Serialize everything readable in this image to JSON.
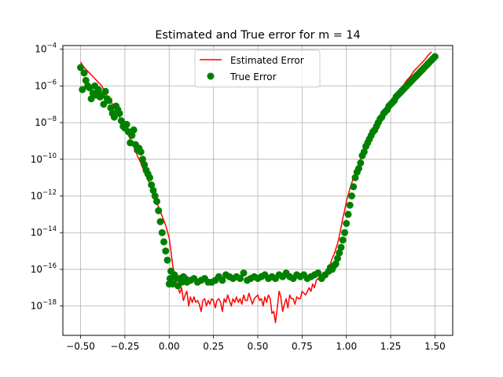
{
  "chart_data": {
    "type": "line",
    "title": "Estimated and True error for m = 14",
    "xlabel": "",
    "ylabel": "",
    "xlim": [
      -0.6,
      1.6
    ],
    "ylim_log10": [
      -19.6,
      -3.8
    ],
    "yscale": "log",
    "grid": true,
    "legend_position": "upper-center",
    "x_ticks": [
      {
        "value": -0.5,
        "label": "−0.50"
      },
      {
        "value": -0.25,
        "label": "−0.25"
      },
      {
        "value": 0.0,
        "label": "0.00"
      },
      {
        "value": 0.25,
        "label": "0.25"
      },
      {
        "value": 0.5,
        "label": "0.50"
      },
      {
        "value": 0.75,
        "label": "0.75"
      },
      {
        "value": 1.0,
        "label": "1.00"
      },
      {
        "value": 1.25,
        "label": "1.25"
      },
      {
        "value": 1.5,
        "label": "1.50"
      }
    ],
    "y_ticks": [
      {
        "exp": -4,
        "base": "10",
        "sup": "−4"
      },
      {
        "exp": -6,
        "base": "10",
        "sup": "−6"
      },
      {
        "exp": -8,
        "base": "10",
        "sup": "−8"
      },
      {
        "exp": -10,
        "base": "10",
        "sup": "−10"
      },
      {
        "exp": -12,
        "base": "10",
        "sup": "−12"
      },
      {
        "exp": -14,
        "base": "10",
        "sup": "−14"
      },
      {
        "exp": -16,
        "base": "10",
        "sup": "−16"
      },
      {
        "exp": -18,
        "base": "10",
        "sup": "−18"
      }
    ],
    "series": [
      {
        "name": "Estimated Error",
        "style": "line",
        "color": "#ff0000",
        "x": [
          -0.5,
          -0.48,
          -0.46,
          -0.44,
          -0.42,
          -0.4,
          -0.38,
          -0.36,
          -0.34,
          -0.32,
          -0.3,
          -0.28,
          -0.26,
          -0.24,
          -0.22,
          -0.2,
          -0.18,
          -0.16,
          -0.14,
          -0.12,
          -0.1,
          -0.08,
          -0.06,
          -0.04,
          -0.02,
          0.0,
          0.01,
          0.02,
          0.03,
          0.04,
          0.05,
          0.06,
          0.07,
          0.08,
          0.09,
          0.1,
          0.11,
          0.12,
          0.13,
          0.14,
          0.15,
          0.16,
          0.17,
          0.18,
          0.19,
          0.2,
          0.21,
          0.22,
          0.23,
          0.24,
          0.25,
          0.26,
          0.27,
          0.28,
          0.29,
          0.3,
          0.31,
          0.32,
          0.33,
          0.34,
          0.35,
          0.36,
          0.37,
          0.38,
          0.39,
          0.4,
          0.41,
          0.42,
          0.43,
          0.44,
          0.45,
          0.46,
          0.47,
          0.48,
          0.49,
          0.5,
          0.51,
          0.52,
          0.53,
          0.54,
          0.55,
          0.56,
          0.57,
          0.58,
          0.59,
          0.6,
          0.61,
          0.62,
          0.63,
          0.64,
          0.65,
          0.66,
          0.67,
          0.68,
          0.69,
          0.7,
          0.71,
          0.72,
          0.73,
          0.74,
          0.75,
          0.76,
          0.77,
          0.78,
          0.79,
          0.8,
          0.81,
          0.82,
          0.83,
          0.84,
          0.85,
          0.86,
          0.87,
          0.88,
          0.89,
          0.9,
          0.91,
          0.92,
          0.93,
          0.94,
          0.95,
          0.96,
          0.97,
          0.98,
          0.99,
          1.0,
          1.02,
          1.04,
          1.06,
          1.08,
          1.1,
          1.12,
          1.14,
          1.16,
          1.18,
          1.2,
          1.22,
          1.24,
          1.26,
          1.28,
          1.3,
          1.32,
          1.34,
          1.36,
          1.38,
          1.4,
          1.42,
          1.44,
          1.46,
          1.48,
          1.5
        ],
        "log10_y": [
          -4.7,
          -5.0,
          -5.2,
          -5.4,
          -5.6,
          -5.8,
          -6.0,
          -6.4,
          -6.7,
          -7.0,
          -7.3,
          -7.7,
          -8.1,
          -8.5,
          -8.9,
          -9.3,
          -9.8,
          -10.2,
          -10.7,
          -11.1,
          -11.6,
          -12.1,
          -12.6,
          -13.1,
          -13.6,
          -14.3,
          -15.0,
          -15.8,
          -16.3,
          -16.8,
          -17.0,
          -17.3,
          -17.0,
          -17.7,
          -17.4,
          -17.2,
          -18.0,
          -17.5,
          -17.8,
          -17.5,
          -17.8,
          -17.7,
          -17.9,
          -18.3,
          -17.7,
          -17.6,
          -18.0,
          -17.7,
          -17.9,
          -17.6,
          -17.7,
          -18.1,
          -17.7,
          -17.6,
          -17.8,
          -18.3,
          -17.6,
          -17.8,
          -17.4,
          -17.7,
          -18.0,
          -17.6,
          -17.8,
          -17.5,
          -17.8,
          -17.6,
          -17.9,
          -17.4,
          -17.7,
          -17.7,
          -17.3,
          -17.6,
          -17.9,
          -17.6,
          -17.5,
          -17.4,
          -17.7,
          -17.6,
          -18.0,
          -17.5,
          -17.8,
          -17.4,
          -17.6,
          -18.4,
          -18.3,
          -18.9,
          -18.1,
          -17.2,
          -17.5,
          -18.3,
          -17.9,
          -17.6,
          -18.1,
          -17.4,
          -17.6,
          -17.6,
          -17.9,
          -17.5,
          -17.6,
          -17.6,
          -17.2,
          -17.3,
          -17.4,
          -17.2,
          -17.0,
          -17.2,
          -16.8,
          -17.0,
          -16.6,
          -16.5,
          -16.6,
          -16.3,
          -16.4,
          -16.2,
          -16.1,
          -15.9,
          -15.7,
          -15.4,
          -15.2,
          -14.9,
          -14.6,
          -14.2,
          -13.7,
          -13.2,
          -12.8,
          -12.3,
          -11.6,
          -11.0,
          -10.5,
          -10.0,
          -9.5,
          -9.1,
          -8.7,
          -8.3,
          -8.0,
          -7.7,
          -7.4,
          -7.1,
          -6.8,
          -6.5,
          -6.2,
          -6.0,
          -5.7,
          -5.5,
          -5.2,
          -5.0,
          -4.8,
          -4.6,
          -4.35,
          -4.15
        ]
      },
      {
        "name": "True Error",
        "style": "markers",
        "color": "#008000",
        "x": [
          -0.5,
          -0.49,
          -0.48,
          -0.47,
          -0.46,
          -0.45,
          -0.44,
          -0.43,
          -0.42,
          -0.41,
          -0.4,
          -0.39,
          -0.38,
          -0.37,
          -0.36,
          -0.35,
          -0.34,
          -0.33,
          -0.32,
          -0.31,
          -0.3,
          -0.29,
          -0.28,
          -0.27,
          -0.26,
          -0.25,
          -0.24,
          -0.23,
          -0.22,
          -0.21,
          -0.2,
          -0.19,
          -0.18,
          -0.17,
          -0.16,
          -0.15,
          -0.14,
          -0.13,
          -0.12,
          -0.11,
          -0.1,
          -0.09,
          -0.08,
          -0.07,
          -0.06,
          -0.05,
          -0.04,
          -0.03,
          -0.02,
          -0.01,
          0.0,
          0.005,
          0.01,
          0.02,
          0.03,
          0.04,
          0.05,
          0.06,
          0.07,
          0.08,
          0.09,
          0.1,
          0.12,
          0.14,
          0.16,
          0.18,
          0.2,
          0.22,
          0.24,
          0.26,
          0.28,
          0.3,
          0.32,
          0.34,
          0.36,
          0.38,
          0.4,
          0.42,
          0.44,
          0.46,
          0.48,
          0.5,
          0.52,
          0.54,
          0.56,
          0.58,
          0.6,
          0.62,
          0.64,
          0.66,
          0.68,
          0.7,
          0.72,
          0.74,
          0.76,
          0.78,
          0.8,
          0.82,
          0.84,
          0.86,
          0.88,
          0.9,
          0.91,
          0.92,
          0.93,
          0.94,
          0.95,
          0.96,
          0.97,
          0.98,
          0.99,
          1.0,
          1.01,
          1.02,
          1.03,
          1.04,
          1.05,
          1.06,
          1.07,
          1.08,
          1.09,
          1.1,
          1.11,
          1.12,
          1.13,
          1.14,
          1.15,
          1.16,
          1.17,
          1.18,
          1.19,
          1.2,
          1.21,
          1.22,
          1.23,
          1.24,
          1.25,
          1.26,
          1.27,
          1.28,
          1.29,
          1.3,
          1.31,
          1.32,
          1.33,
          1.34,
          1.35,
          1.36,
          1.37,
          1.38,
          1.39,
          1.4,
          1.41,
          1.42,
          1.43,
          1.44,
          1.45,
          1.46,
          1.47,
          1.48,
          1.49,
          1.5
        ],
        "log10_y": [
          -5.0,
          -6.2,
          -5.3,
          -5.7,
          -6.0,
          -6.1,
          -6.7,
          -6.4,
          -6.0,
          -6.5,
          -6.2,
          -6.6,
          -6.5,
          -7.0,
          -6.3,
          -6.7,
          -6.8,
          -7.2,
          -7.5,
          -7.7,
          -7.1,
          -7.3,
          -7.5,
          -7.9,
          -8.2,
          -8.3,
          -8.1,
          -8.5,
          -9.1,
          -8.7,
          -8.4,
          -9.2,
          -9.5,
          -9.4,
          -9.6,
          -10.0,
          -10.3,
          -10.6,
          -10.8,
          -11.0,
          -11.4,
          -11.7,
          -12.0,
          -12.3,
          -12.8,
          -13.4,
          -14.0,
          -14.5,
          -15.0,
          -15.5,
          -16.8,
          -16.5,
          -16.1,
          -16.8,
          -16.3,
          -16.5,
          -16.9,
          -16.5,
          -16.7,
          -16.4,
          -16.5,
          -16.7,
          -16.6,
          -16.5,
          -16.7,
          -16.6,
          -16.5,
          -16.7,
          -16.7,
          -16.6,
          -16.4,
          -16.6,
          -16.3,
          -16.4,
          -16.5,
          -16.4,
          -16.5,
          -16.2,
          -16.6,
          -16.5,
          -16.4,
          -16.5,
          -16.4,
          -16.3,
          -16.5,
          -16.4,
          -16.5,
          -16.3,
          -16.4,
          -16.2,
          -16.4,
          -16.5,
          -16.3,
          -16.4,
          -16.3,
          -16.5,
          -16.4,
          -16.3,
          -16.2,
          -16.5,
          -16.3,
          -16.1,
          -15.9,
          -16.0,
          -15.8,
          -15.7,
          -15.4,
          -15.1,
          -14.8,
          -14.4,
          -14.0,
          -13.5,
          -13.0,
          -12.5,
          -12.0,
          -11.5,
          -11.0,
          -10.7,
          -10.5,
          -10.2,
          -9.8,
          -9.6,
          -9.3,
          -9.1,
          -8.9,
          -8.7,
          -8.5,
          -8.4,
          -8.2,
          -8.0,
          -7.8,
          -7.7,
          -7.5,
          -7.4,
          -7.3,
          -7.1,
          -7.0,
          -6.9,
          -6.8,
          -6.6,
          -6.5,
          -6.4,
          -6.3,
          -6.2,
          -6.1,
          -6.0,
          -5.9,
          -5.8,
          -5.7,
          -5.6,
          -5.5,
          -5.4,
          -5.3,
          -5.2,
          -5.1,
          -5.0,
          -4.9,
          -4.8,
          -4.7,
          -4.6,
          -4.5,
          -4.4,
          -4.3,
          -4.2
        ]
      }
    ]
  }
}
